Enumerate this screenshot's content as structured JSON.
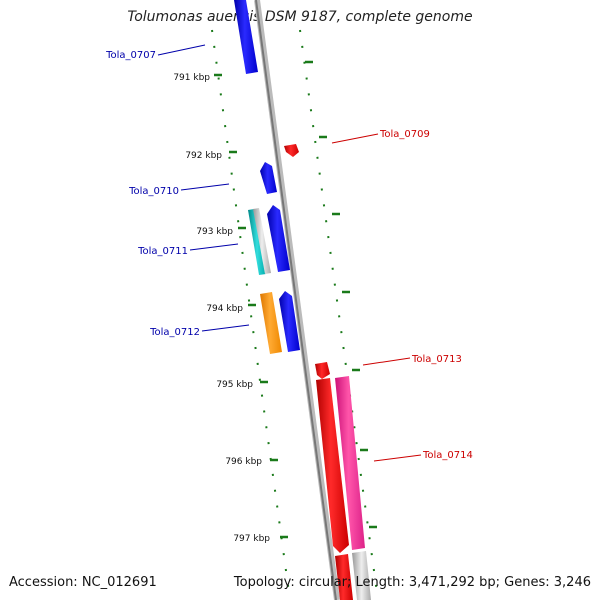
{
  "title": "Tolumonas auensis DSM 9187, complete genome",
  "footer": {
    "accession": "Accession: NC_012691",
    "summary": "Topology: circular; Length: 3,471,292 bp; Genes: 3,246"
  },
  "colors": {
    "forward_gene": "#0000ee",
    "reverse_gene": "#ee0000",
    "forward_label": "#0000aa",
    "reverse_label": "#cc0000",
    "tick": "#1a7a1a",
    "backbone": "#888888"
  },
  "ruler_ticks": [
    "791 kbp",
    "792 kbp",
    "793 kbp",
    "794 kbp",
    "795 kbp",
    "796 kbp",
    "797 kbp"
  ],
  "gene_labels": {
    "forward": [
      "Tola_0707",
      "Tola_0710",
      "Tola_0711",
      "Tola_0712"
    ],
    "reverse": [
      "Tola_0709",
      "Tola_0713",
      "Tola_0714"
    ]
  }
}
